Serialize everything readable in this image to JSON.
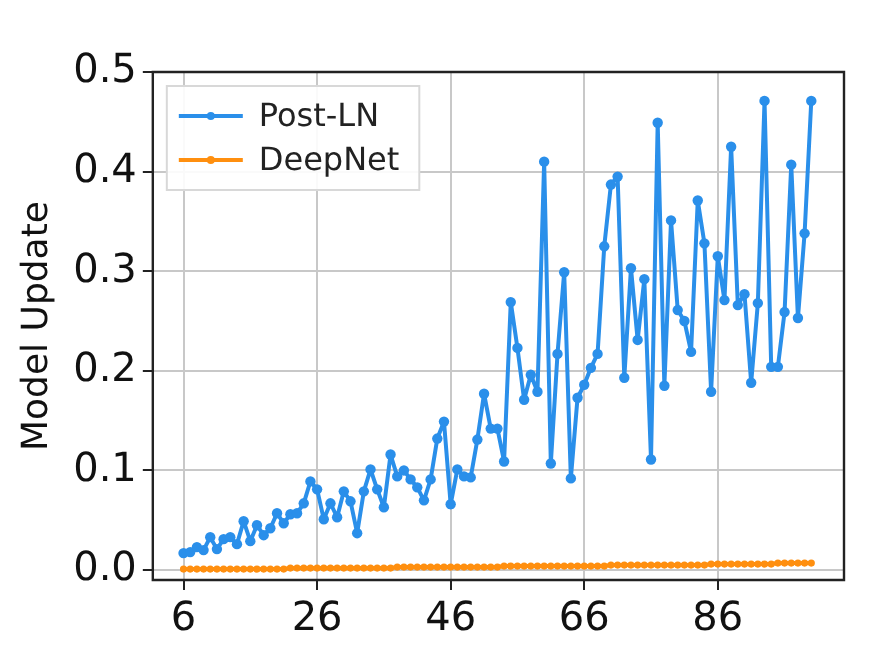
{
  "chart_data": {
    "type": "line",
    "ylabel": "Model Update",
    "x": [
      6,
      7,
      8,
      9,
      10,
      11,
      12,
      13,
      14,
      15,
      16,
      17,
      18,
      19,
      20,
      21,
      22,
      23,
      24,
      25,
      26,
      27,
      28,
      29,
      30,
      31,
      32,
      33,
      34,
      35,
      36,
      37,
      38,
      39,
      40,
      41,
      42,
      43,
      44,
      45,
      46,
      47,
      48,
      49,
      50,
      51,
      52,
      53,
      54,
      55,
      56,
      57,
      58,
      59,
      60,
      61,
      62,
      63,
      64,
      65,
      66,
      67,
      68,
      69,
      70,
      71,
      72,
      73,
      74,
      75,
      76,
      77,
      78,
      79,
      80,
      81,
      82,
      83,
      84,
      85,
      86,
      87,
      88,
      89,
      90,
      91,
      92,
      93,
      94,
      95,
      96,
      97,
      98,
      99,
      100
    ],
    "series": [
      {
        "name": "Post-LN",
        "color": "#2a8fea",
        "values": [
          0.017,
          0.018,
          0.023,
          0.02,
          0.033,
          0.021,
          0.031,
          0.033,
          0.026,
          0.049,
          0.029,
          0.045,
          0.035,
          0.042,
          0.057,
          0.047,
          0.056,
          0.057,
          0.067,
          0.089,
          0.081,
          0.051,
          0.067,
          0.053,
          0.079,
          0.069,
          0.037,
          0.079,
          0.101,
          0.081,
          0.063,
          0.116,
          0.094,
          0.1,
          0.091,
          0.083,
          0.07,
          0.091,
          0.132,
          0.149,
          0.066,
          0.101,
          0.094,
          0.093,
          0.131,
          0.177,
          0.142,
          0.142,
          0.109,
          0.269,
          0.223,
          0.171,
          0.196,
          0.179,
          0.41,
          0.107,
          0.217,
          0.299,
          0.092,
          0.173,
          0.186,
          0.203,
          0.217,
          0.325,
          0.387,
          0.395,
          0.193,
          0.303,
          0.231,
          0.292,
          0.111,
          0.449,
          0.185,
          0.351,
          0.261,
          0.25,
          0.219,
          0.371,
          0.328,
          0.179,
          0.315,
          0.271,
          0.425,
          0.266,
          0.277,
          0.188,
          0.268,
          0.471,
          0.204,
          0.204,
          0.259,
          0.407,
          0.253,
          0.338,
          0.471
        ]
      },
      {
        "name": "DeepNet",
        "color": "#ff8f0f",
        "values": [
          0.001,
          0.001,
          0.001,
          0.001,
          0.001,
          0.001,
          0.001,
          0.001,
          0.001,
          0.001,
          0.001,
          0.001,
          0.001,
          0.001,
          0.001,
          0.001,
          0.002,
          0.002,
          0.002,
          0.002,
          0.002,
          0.002,
          0.002,
          0.002,
          0.002,
          0.002,
          0.002,
          0.002,
          0.002,
          0.002,
          0.002,
          0.002,
          0.003,
          0.003,
          0.003,
          0.003,
          0.003,
          0.003,
          0.003,
          0.003,
          0.003,
          0.003,
          0.003,
          0.003,
          0.003,
          0.003,
          0.003,
          0.003,
          0.004,
          0.004,
          0.004,
          0.004,
          0.004,
          0.004,
          0.004,
          0.004,
          0.004,
          0.004,
          0.004,
          0.004,
          0.004,
          0.004,
          0.004,
          0.004,
          0.005,
          0.005,
          0.005,
          0.005,
          0.005,
          0.005,
          0.005,
          0.005,
          0.005,
          0.005,
          0.005,
          0.005,
          0.005,
          0.005,
          0.005,
          0.006,
          0.006,
          0.006,
          0.006,
          0.006,
          0.006,
          0.006,
          0.006,
          0.006,
          0.006,
          0.007,
          0.007,
          0.007,
          0.007,
          0.007,
          0.007
        ]
      }
    ],
    "xlim": [
      1.4,
      104.9
    ],
    "xticks": [
      6,
      26,
      46,
      66,
      86
    ],
    "ylim": [
      -0.01,
      0.5
    ],
    "yticks": [
      {
        "value": 0,
        "label": "0.0"
      },
      {
        "value": 0.1,
        "label": "0.1"
      },
      {
        "value": 0.2,
        "label": "0.2"
      },
      {
        "value": 0.3,
        "label": "0.3"
      },
      {
        "value": 0.4,
        "label": "0.4"
      },
      {
        "value": 0.5,
        "label": "0.5"
      }
    ],
    "grid": true,
    "legend": "top left",
    "marker": "circle",
    "line_style": "solid"
  }
}
